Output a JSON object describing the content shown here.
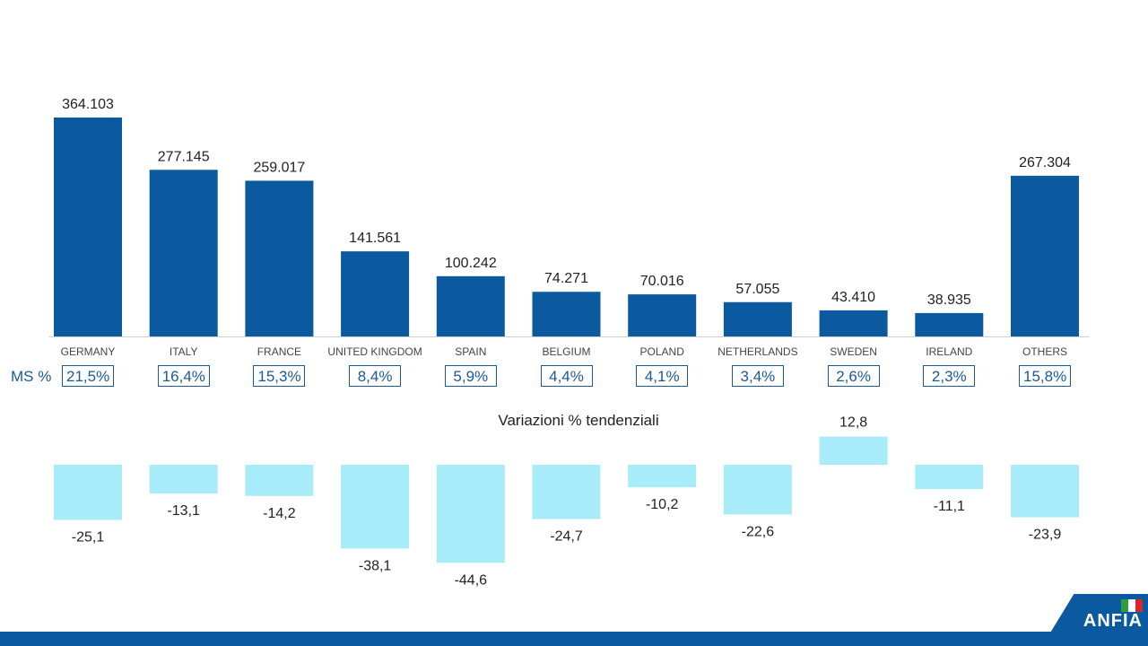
{
  "chart_data": {
    "type": "bar",
    "categories": [
      "GERMANY",
      "ITALY",
      "FRANCE",
      "UNITED KINGDOM",
      "SPAIN",
      "BELGIUM",
      "POLAND",
      "NETHERLANDS",
      "SWEDEN",
      "IRELAND",
      "OTHERS"
    ],
    "values": [
      364103,
      277145,
      259017,
      141561,
      100242,
      74271,
      70016,
      57055,
      43410,
      38935,
      267304
    ],
    "value_labels": [
      "364.103",
      "277.145",
      "259.017",
      "141.561",
      "100.242",
      "74.271",
      "70.016",
      "57.055",
      "43.410",
      "38.935",
      "267.304"
    ],
    "ms_label": "MS %",
    "ms_values": [
      "21,5%",
      "16,4%",
      "15,3%",
      "8,4%",
      "5,9%",
      "4,4%",
      "4,1%",
      "3,4%",
      "2,6%",
      "2,3%",
      "15,8%"
    ],
    "variation_title": "Variazioni % tendenziali",
    "variations": [
      -25.1,
      -13.1,
      -14.2,
      -38.1,
      -44.6,
      -24.7,
      -10.2,
      -22.6,
      12.8,
      -11.1,
      -23.9
    ],
    "variation_labels": [
      "-25,1",
      "-13,1",
      "-14,2",
      "-38,1",
      "-44,6",
      "-24,7",
      "-10,2",
      "-22,6",
      "12,8",
      "-11,1",
      "-23,9"
    ],
    "colors": {
      "bar": "#0b5aa0",
      "variation_bar": "#a8ecfa",
      "text": "#222222"
    }
  },
  "logo": {
    "text": "ANFIA"
  }
}
